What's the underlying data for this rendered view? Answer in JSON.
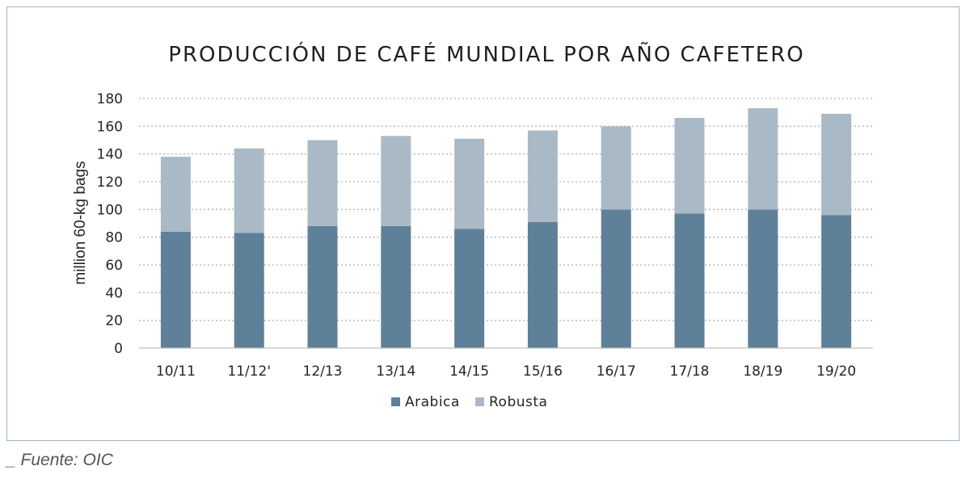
{
  "chart_data": {
    "type": "bar",
    "stacked": true,
    "title": "PRODUCCIÓN DE CAFÉ MUNDIAL POR AÑO CAFETERO",
    "xlabel": "",
    "ylabel": "million 60-kg bags",
    "ylim": [
      0,
      180
    ],
    "yticks": [
      "0",
      "20",
      "40",
      "60",
      "80",
      "100",
      "120",
      "140",
      "160",
      "180"
    ],
    "categories": [
      "10/11",
      "11/12'",
      "12/13",
      "13/14",
      "14/15",
      "15/16",
      "16/17",
      "17/18",
      "18/19",
      "19/20"
    ],
    "series": [
      {
        "name": "Arabica",
        "color": "#5e8199",
        "values": [
          84,
          83,
          88,
          88,
          86,
          91,
          100,
          97,
          100,
          96
        ]
      },
      {
        "name": "Robusta",
        "color": "#aab9c6",
        "values": [
          54,
          61,
          62,
          65,
          65,
          66,
          60,
          69,
          73,
          73
        ]
      }
    ],
    "grid": "horizontal dotted",
    "legend_position": "bottom"
  },
  "source_note": "_ Fuente: OIC"
}
